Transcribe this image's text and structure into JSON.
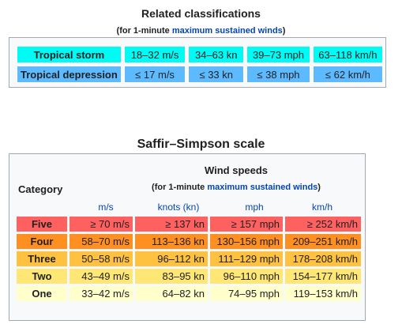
{
  "related": {
    "title": "Related classifications",
    "subtitle_prefix": "(for 1-minute ",
    "subtitle_link": "maximum sustained winds",
    "subtitle_suffix": ")",
    "rows": [
      {
        "name": "Tropical storm",
        "ms": "18–32 m/s",
        "kn": "34–63 kn",
        "mph": "39–73 mph",
        "kmh": "63–118 km/h",
        "color": "#00faf4"
      },
      {
        "name": "Tropical depression",
        "ms": "≤ 17 m/s",
        "kn": "≤ 33 kn",
        "mph": "≤ 38 mph",
        "kmh": "≤ 62 km/h",
        "color": "#5ebaff"
      }
    ]
  },
  "saffir": {
    "title": "Saffir–Simpson scale",
    "wind_speeds": "Wind speeds",
    "subtitle_prefix": "(for 1-minute ",
    "subtitle_link": "maximum sustained winds",
    "subtitle_suffix": ")",
    "category_label": "Category",
    "units": [
      "m/s",
      "knots (kn)",
      "mph",
      "km/h"
    ],
    "rows": [
      {
        "cat": "Five",
        "ms": "≥ 70 m/s",
        "kn": "≥ 137 kn",
        "mph": "≥ 157 mph",
        "kmh": "≥ 252 km/h",
        "color": "#ff6060"
      },
      {
        "cat": "Four",
        "ms": "58–70 m/s",
        "kn": "113–136 kn",
        "mph": "130–156 mph",
        "kmh": "209–251 km/h",
        "color": "#ff8f20"
      },
      {
        "cat": "Three",
        "ms": "50–58 m/s",
        "kn": "96–112 kn",
        "mph": "111–129 mph",
        "kmh": "178–208 km/h",
        "color": "#ffc140"
      },
      {
        "cat": "Two",
        "ms": "43–49 m/s",
        "kn": "83–95 kn",
        "mph": "96–110 mph",
        "kmh": "154–177 km/h",
        "color": "#ffe775"
      },
      {
        "cat": "One",
        "ms": "33–42 m/s",
        "kn": "64–82 kn",
        "mph": "74–95 mph",
        "kmh": "119–153 km/h",
        "color": "#ffffcc"
      }
    ]
  }
}
